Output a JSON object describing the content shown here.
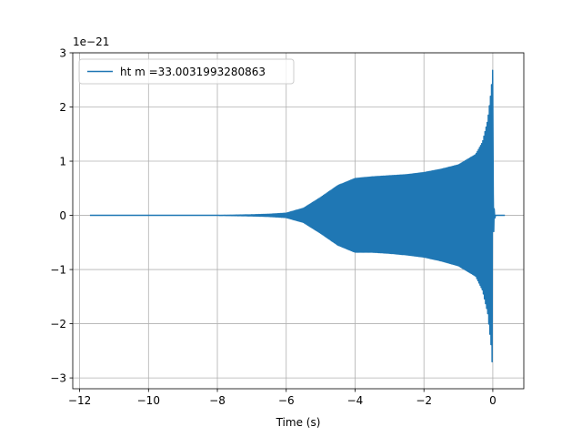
{
  "chart_data": {
    "type": "line",
    "title": "",
    "xlabel": "Time (s)",
    "ylabel": "",
    "y_offset_label": "1e−21",
    "xlim": [
      -12.2,
      0.9
    ],
    "ylim": [
      -3.2,
      3.0
    ],
    "x_ticks": [
      -12,
      -10,
      -8,
      -6,
      -4,
      -2,
      0
    ],
    "x_tick_labels": [
      "−12",
      "−10",
      "−8",
      "−6",
      "−4",
      "−2",
      "0"
    ],
    "y_ticks": [
      -3,
      -2,
      -1,
      0,
      1,
      2,
      3
    ],
    "y_tick_labels": [
      "−3",
      "−2",
      "−1",
      "0",
      "1",
      "2",
      "3"
    ],
    "grid": true,
    "legend_position": "top-left",
    "series": [
      {
        "name": "ht m =33.0031993280863",
        "color": "#1f77b4",
        "t_start": -11.7,
        "t_end": 0.35,
        "merger_time": 0.0,
        "envelope": {
          "t": [
            -11.7,
            -8.0,
            -7.0,
            -6.5,
            -6.0,
            -5.5,
            -5.0,
            -4.5,
            -4.0,
            -3.5,
            -3.0,
            -2.5,
            -2.0,
            -1.5,
            -1.0,
            -0.5,
            -0.3,
            -0.15,
            -0.05,
            0.0
          ],
          "upper": [
            0.0,
            0.0,
            0.01,
            0.02,
            0.04,
            0.13,
            0.33,
            0.55,
            0.68,
            0.71,
            0.73,
            0.75,
            0.79,
            0.85,
            0.93,
            1.12,
            1.35,
            1.75,
            2.3,
            2.72
          ],
          "lower": [
            0.0,
            0.0,
            -0.01,
            -0.02,
            -0.04,
            -0.13,
            -0.33,
            -0.55,
            -0.68,
            -0.68,
            -0.7,
            -0.73,
            -0.77,
            -0.84,
            -0.93,
            -1.12,
            -1.38,
            -1.8,
            -2.4,
            -2.92
          ]
        }
      }
    ]
  }
}
